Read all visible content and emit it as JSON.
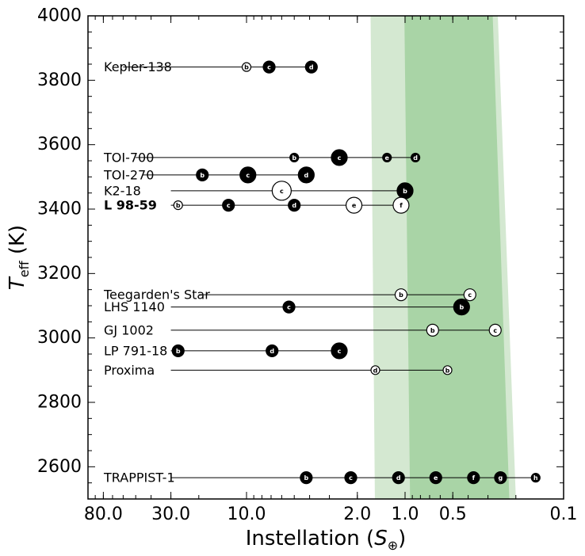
{
  "chart_data": {
    "type": "scatter",
    "xlabel": {
      "prefix": "Instellation (",
      "symbol": "S",
      "sub": "⊕",
      "suffix": ")"
    },
    "ylabel": {
      "symbol": "T",
      "sub": "eff",
      "suffix": " (K)"
    },
    "x_scale": "log",
    "x_reversed": true,
    "xlim": [
      100,
      0.1
    ],
    "ylim": [
      2500,
      4000
    ],
    "x_ticks": [
      {
        "value": 80,
        "label": "80.0"
      },
      {
        "value": 30,
        "label": "30.0"
      },
      {
        "value": 10,
        "label": "10.0"
      },
      {
        "value": 2,
        "label": "2.0"
      },
      {
        "value": 1,
        "label": "1.0"
      },
      {
        "value": 0.5,
        "label": "0.5"
      },
      {
        "value": 0.1,
        "label": "0.1"
      }
    ],
    "y_ticks": [
      {
        "value": 2600,
        "label": "2600"
      },
      {
        "value": 2800,
        "label": "2800"
      },
      {
        "value": 3000,
        "label": "3000"
      },
      {
        "value": 3200,
        "label": "3200"
      },
      {
        "value": 3400,
        "label": "3400"
      },
      {
        "value": 3600,
        "label": "3600"
      },
      {
        "value": 3800,
        "label": "3800"
      },
      {
        "value": 4000,
        "label": "4000"
      }
    ],
    "habitable_zone": {
      "conservative_color": "#a9d4a6",
      "optimistic_color": "#d4e8d1",
      "optimistic": {
        "inner_top": 1.65,
        "inner_bottom": 1.55,
        "outer_top": 0.26,
        "outer_bottom": 0.2
      },
      "conservative": {
        "inner_top": 1.01,
        "inner_bottom": 0.93,
        "outer_top": 0.28,
        "outer_bottom": 0.22
      }
    },
    "systems": [
      {
        "name": "Kepler-138",
        "bold": false,
        "teff": 3841,
        "label_end": 60,
        "planets": [
          {
            "letter": "b",
            "s": 10,
            "filled": false,
            "size": "small"
          },
          {
            "letter": "c",
            "s": 7.2,
            "filled": true,
            "size": "medium"
          },
          {
            "letter": "d",
            "s": 3.9,
            "filled": true,
            "size": "medium"
          }
        ]
      },
      {
        "name": "TOI-700",
        "bold": false,
        "teff": 3560,
        "label_end": 50,
        "planets": [
          {
            "letter": "b",
            "s": 5.0,
            "filled": true,
            "size": "small"
          },
          {
            "letter": "c",
            "s": 2.6,
            "filled": true,
            "size": "large"
          },
          {
            "letter": "e",
            "s": 1.3,
            "filled": true,
            "size": "small"
          },
          {
            "letter": "d",
            "s": 0.86,
            "filled": true,
            "size": "small"
          }
        ]
      },
      {
        "name": "TOI-270",
        "bold": false,
        "teff": 3506,
        "label_end": 45,
        "planets": [
          {
            "letter": "b",
            "s": 19,
            "filled": true,
            "size": "medium"
          },
          {
            "letter": "c",
            "s": 9.8,
            "filled": true,
            "size": "large"
          },
          {
            "letter": "d",
            "s": 4.2,
            "filled": true,
            "size": "large"
          }
        ]
      },
      {
        "name": "K2-18",
        "bold": false,
        "teff": 3457,
        "label_end": 30,
        "planets": [
          {
            "letter": "c",
            "s": 6.0,
            "filled": false,
            "size": "xlarge"
          },
          {
            "letter": "b",
            "s": 1.0,
            "filled": true,
            "size": "large"
          }
        ]
      },
      {
        "name": "L 98-59",
        "bold": true,
        "teff": 3412,
        "label_end": 30,
        "planets": [
          {
            "letter": "b",
            "s": 27,
            "filled": false,
            "size": "small"
          },
          {
            "letter": "c",
            "s": 13,
            "filled": true,
            "size": "medium"
          },
          {
            "letter": "d",
            "s": 5.0,
            "filled": true,
            "size": "medium"
          },
          {
            "letter": "e",
            "s": 2.1,
            "filled": false,
            "size": "large"
          },
          {
            "letter": "f",
            "s": 1.06,
            "filled": false,
            "size": "large"
          }
        ]
      },
      {
        "name": "Teegarden's Star",
        "bold": false,
        "teff": 3134,
        "label_end": 20,
        "planets": [
          {
            "letter": "b",
            "s": 1.06,
            "filled": false,
            "size": "medium"
          },
          {
            "letter": "c",
            "s": 0.39,
            "filled": false,
            "size": "medium"
          }
        ]
      },
      {
        "name": "LHS 1140",
        "bold": false,
        "teff": 3096,
        "label_end": 30,
        "planets": [
          {
            "letter": "c",
            "s": 5.4,
            "filled": true,
            "size": "medium"
          },
          {
            "letter": "b",
            "s": 0.44,
            "filled": true,
            "size": "large"
          }
        ]
      },
      {
        "name": "GJ 1002",
        "bold": false,
        "teff": 3024,
        "label_end": 30,
        "planets": [
          {
            "letter": "b",
            "s": 0.67,
            "filled": false,
            "size": "medium"
          },
          {
            "letter": "c",
            "s": 0.27,
            "filled": false,
            "size": "medium"
          }
        ]
      },
      {
        "name": "LP 791-18",
        "bold": false,
        "teff": 2960,
        "label_end": 30,
        "planets": [
          {
            "letter": "b",
            "s": 27,
            "filled": true,
            "size": "medium"
          },
          {
            "letter": "d",
            "s": 6.9,
            "filled": true,
            "size": "medium"
          },
          {
            "letter": "c",
            "s": 2.6,
            "filled": true,
            "size": "large"
          }
        ]
      },
      {
        "name": "Proxima",
        "bold": false,
        "teff": 2900,
        "label_end": 30,
        "planets": [
          {
            "letter": "d",
            "s": 1.54,
            "filled": false,
            "size": "small"
          },
          {
            "letter": "b",
            "s": 0.54,
            "filled": false,
            "size": "small"
          }
        ]
      },
      {
        "name": "TRAPPIST-1",
        "bold": false,
        "teff": 2566,
        "label_end": 30,
        "planets": [
          {
            "letter": "b",
            "s": 4.2,
            "filled": true,
            "size": "medium"
          },
          {
            "letter": "c",
            "s": 2.2,
            "filled": true,
            "size": "medium"
          },
          {
            "letter": "d",
            "s": 1.1,
            "filled": true,
            "size": "medium"
          },
          {
            "letter": "e",
            "s": 0.64,
            "filled": true,
            "size": "medium"
          },
          {
            "letter": "f",
            "s": 0.37,
            "filled": true,
            "size": "medium"
          },
          {
            "letter": "g",
            "s": 0.25,
            "filled": true,
            "size": "medium"
          },
          {
            "letter": "h",
            "s": 0.15,
            "filled": true,
            "size": "small"
          }
        ]
      }
    ]
  }
}
